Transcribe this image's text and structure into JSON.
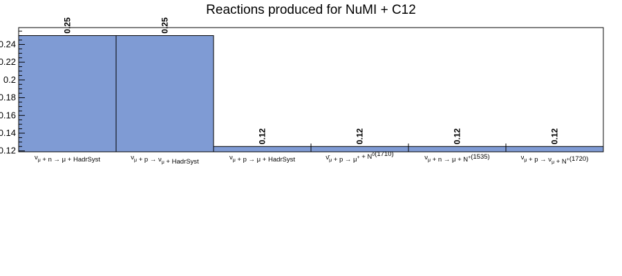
{
  "chart_data": {
    "type": "bar",
    "title": "Reactions produced for NuMI + C12",
    "categories": [
      "ν_μ + n → μ + HadrSyst",
      "ν_μ + p → ν_μ + HadrSyst",
      "ν_μ + p → μ + HadrSyst",
      "ν̄_μ + p → μ⁺ + N⁰(1710)",
      "ν_μ + n → μ + N⁺(1535)",
      "ν_μ + p → ν_μ + N⁺(1720)"
    ],
    "values": [
      0.25,
      0.25,
      0.125,
      0.125,
      0.125,
      0.125
    ],
    "data_labels": [
      "0.25",
      "0.25",
      "0.12",
      "0.12",
      "0.12",
      "0.12"
    ],
    "yticks": [
      0.12,
      0.14,
      0.16,
      0.18,
      0.2,
      0.22,
      0.24
    ],
    "ytick_labels": [
      "0.12",
      "0.14",
      "0.16",
      "0.18",
      "0.2",
      "0.22",
      "0.24"
    ],
    "ylim": [
      0.119,
      0.259
    ],
    "xlabel": "",
    "ylabel": "",
    "grid": false,
    "bar_color": "#7f9bd4"
  }
}
